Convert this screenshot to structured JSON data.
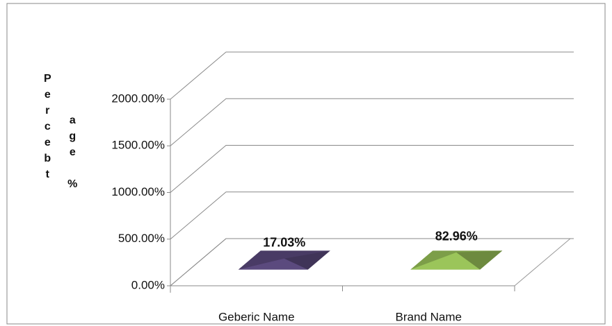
{
  "chart_data": {
    "type": "pyramid3d",
    "y_label_lines": [
      "Percebt",
      "age %"
    ],
    "categories": [
      "Geberic Name",
      "Brand Name"
    ],
    "values": [
      17.03,
      82.96
    ],
    "value_labels": [
      "17.03%",
      "82.96%"
    ],
    "colors": [
      "#5b4a7e",
      "#9bc55a"
    ],
    "ylim": [
      0,
      2000
    ],
    "yticks": [
      {
        "value": 0,
        "label": "0.00%"
      },
      {
        "value": 500,
        "label": "500.00%"
      },
      {
        "value": 1000,
        "label": "1000.00%"
      },
      {
        "value": 1500,
        "label": "1500.00%"
      },
      {
        "value": 2000,
        "label": "2000.00%"
      }
    ],
    "grid": true
  }
}
